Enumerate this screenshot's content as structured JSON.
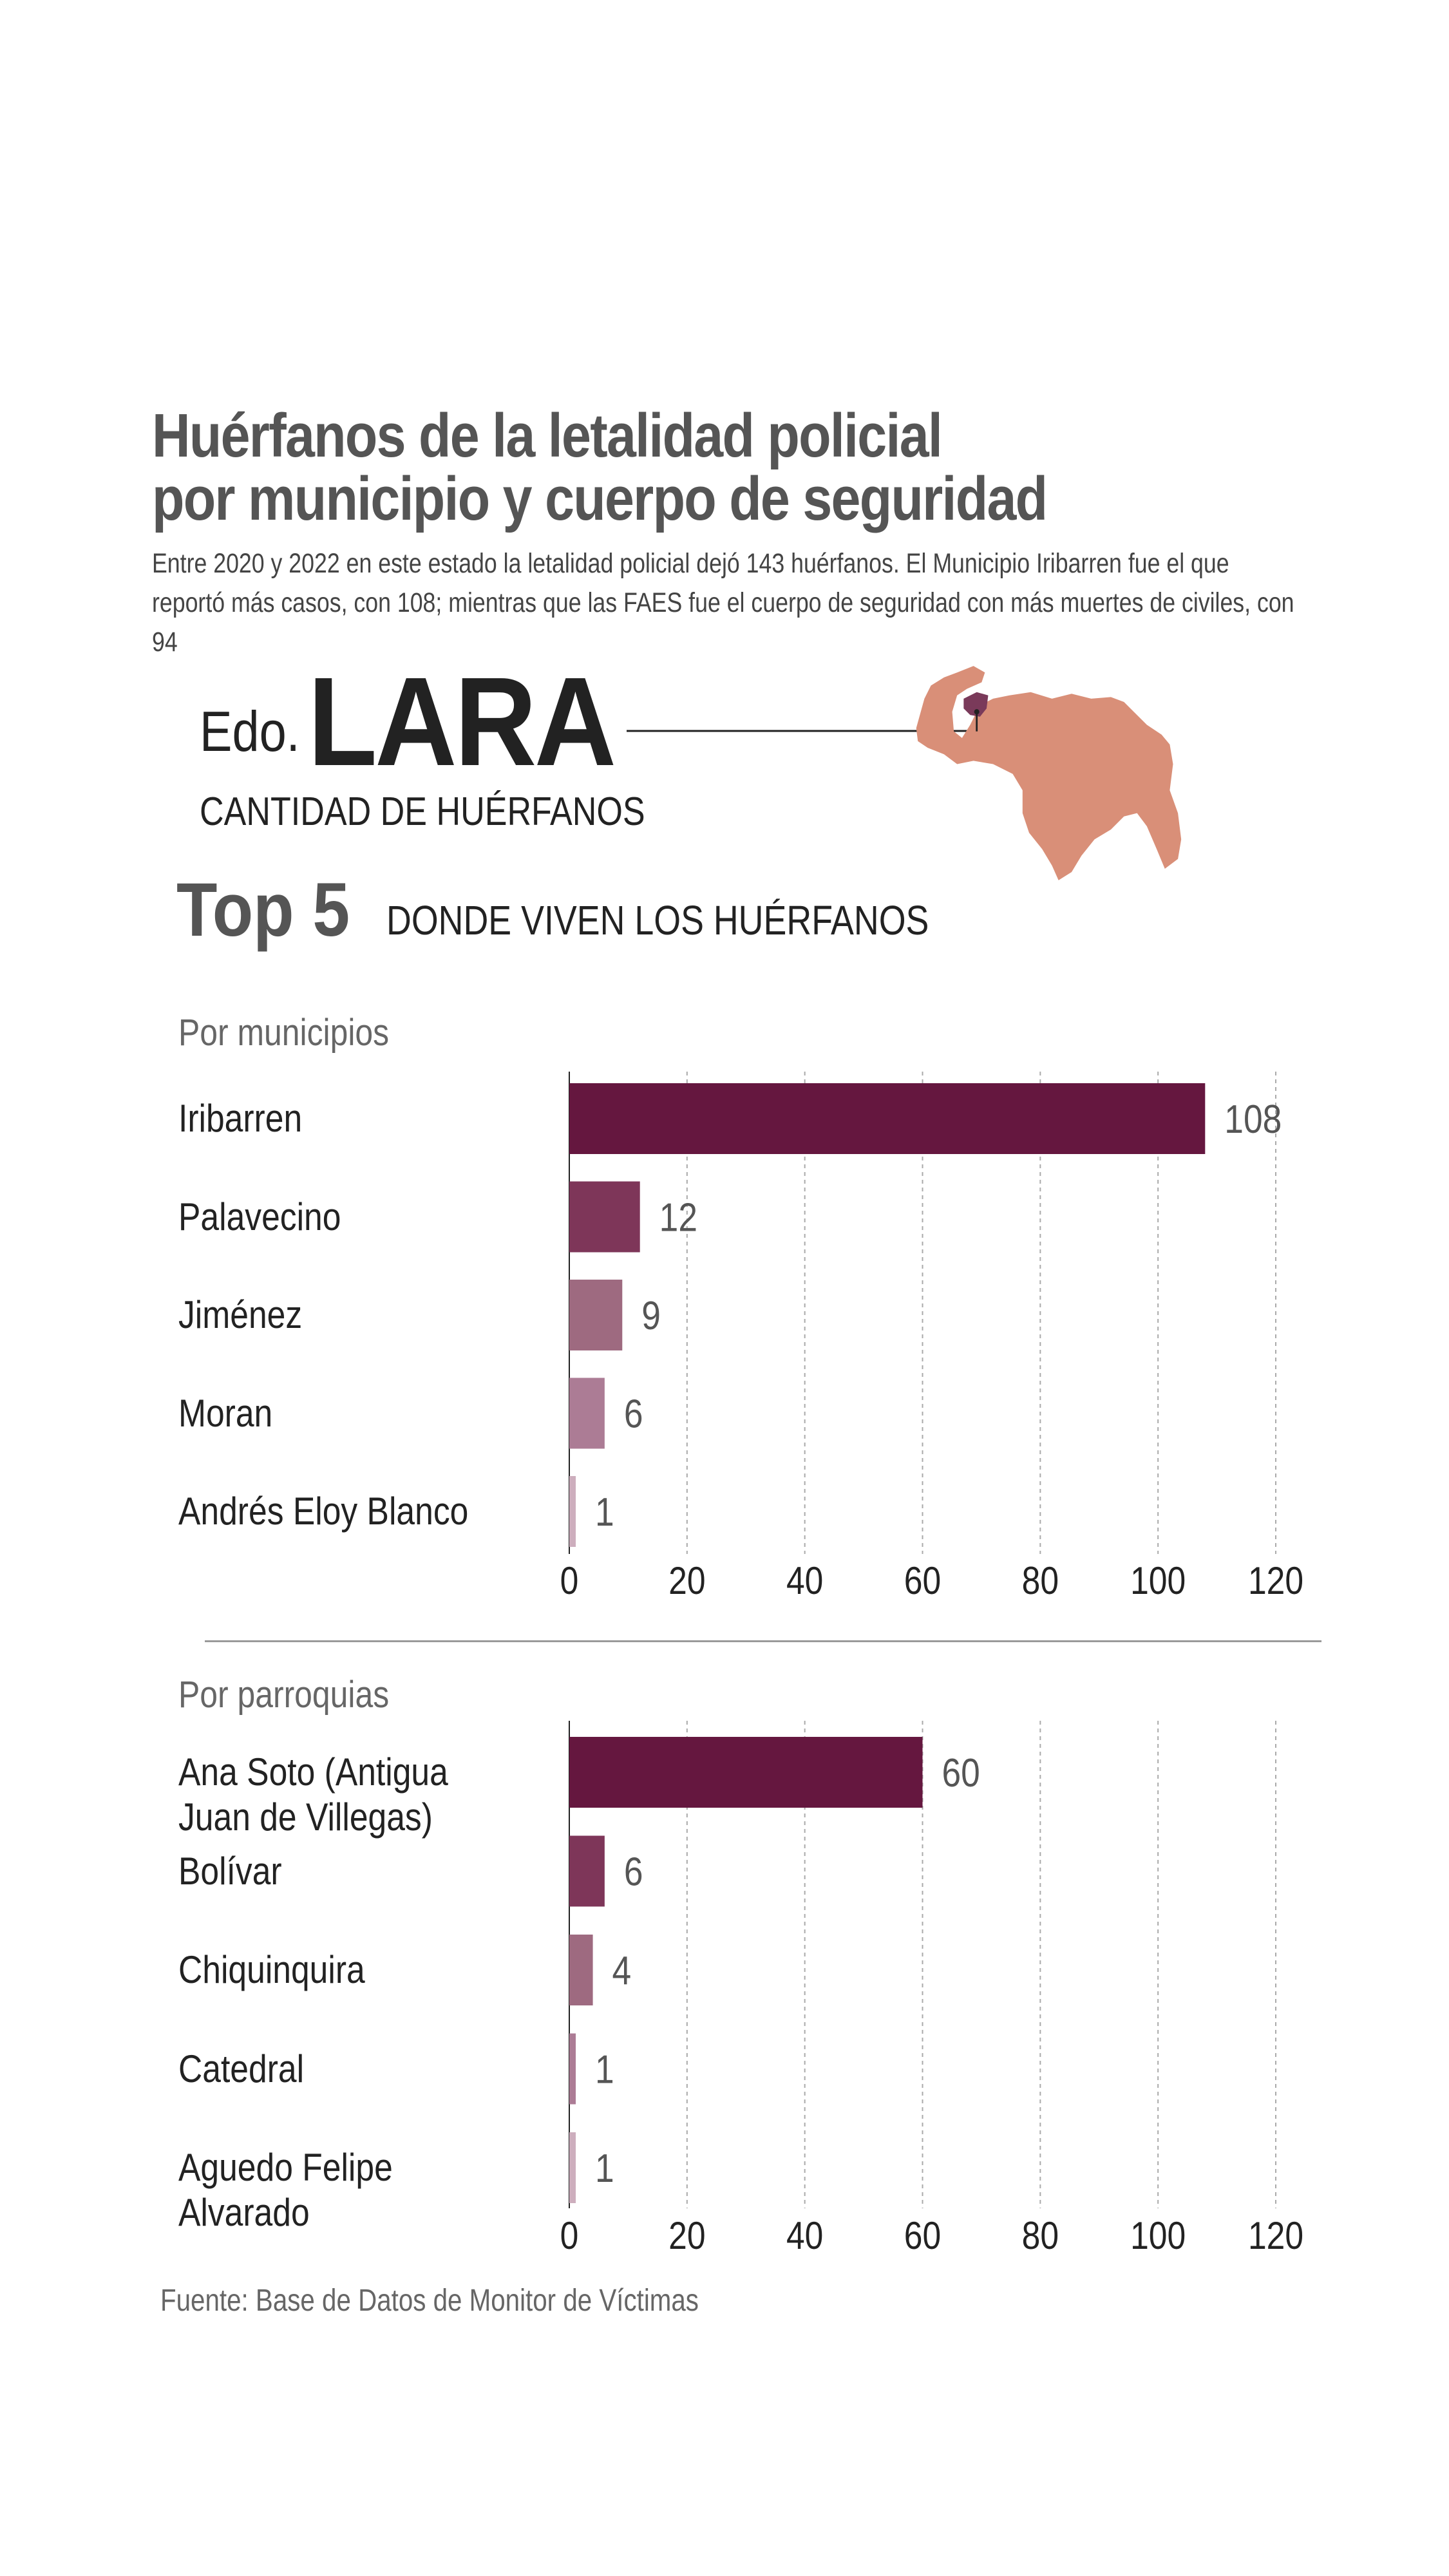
{
  "header": {
    "title_line1": "Huérfanos de la letalidad policial",
    "title_line2": "por municipio y cuerpo de seguridad",
    "subtitle": "Entre 2020 y 2022 en este estado la letalidad policial dejó 143 huérfanos. El Municipio Iribarren fue el que reportó más casos, con 108; mientras que las FAES fue el cuerpo de seguridad con más muertes de civiles, con 94"
  },
  "state": {
    "prefix": "Edo.",
    "name": "LARA",
    "caption": "CANTIDAD DE HUÉRFANOS",
    "map_color": "#d98f78",
    "highlight_color": "#7a3a5a"
  },
  "top": {
    "label": "Top 5",
    "caption": "DONDE VIVEN LOS HUÉRFANOS"
  },
  "chart_data": [
    {
      "type": "bar",
      "orientation": "horizontal",
      "title": "Por municipios",
      "categories": [
        "Iribarren",
        "Palavecino",
        "Jiménez",
        "Moran",
        "Andrés Eloy Blanco"
      ],
      "values": [
        108,
        12,
        9,
        6,
        1
      ],
      "colors": [
        "#65173f",
        "#7e3659",
        "#9e6a80",
        "#ac7c95",
        "#cdaebd"
      ],
      "xlim": [
        0,
        120
      ],
      "xticks": [
        "0",
        "20",
        "40",
        "60",
        "80",
        "100",
        "120"
      ],
      "grid": "vertical dashed"
    },
    {
      "type": "bar",
      "orientation": "horizontal",
      "title": "Por parroquias",
      "categories": [
        "Ana Soto (Antigua Juan de Villegas)",
        "Bolívar",
        "Chiquinquira",
        "Catedral",
        "Aguedo Felipe Alvarado"
      ],
      "values": [
        60,
        6,
        4,
        1,
        1
      ],
      "colors": [
        "#65173f",
        "#7e3659",
        "#9e6a80",
        "#ac7c95",
        "#cdaebd"
      ],
      "xlim": [
        0,
        120
      ],
      "xticks": [
        "0",
        "20",
        "40",
        "60",
        "80",
        "100",
        "120"
      ],
      "grid": "vertical dashed"
    }
  ],
  "footer": {
    "source": "Fuente: Base de Datos de Monitor de Víctimas"
  }
}
